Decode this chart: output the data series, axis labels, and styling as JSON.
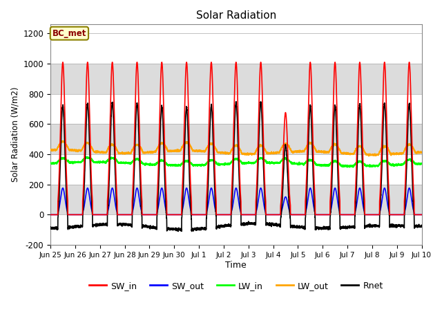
{
  "title": "Solar Radiation",
  "ylabel": "Solar Radiation (W/m2)",
  "xlabel": "Time",
  "ylim": [
    -200,
    1260
  ],
  "yticks": [
    -200,
    0,
    200,
    400,
    600,
    800,
    1000,
    1200
  ],
  "annotation": "BC_met",
  "series": {
    "SW_in": {
      "color": "#ff0000",
      "lw": 1.2
    },
    "SW_out": {
      "color": "#0000ff",
      "lw": 1.2
    },
    "LW_in": {
      "color": "#00ff00",
      "lw": 1.2
    },
    "LW_out": {
      "color": "#ffa500",
      "lw": 1.2
    },
    "Rnet": {
      "color": "#000000",
      "lw": 1.2
    }
  },
  "x_tick_labels": [
    "Jun 25",
    "Jun 26",
    "Jun 27",
    "Jun 28",
    "Jun 29",
    "Jun 30",
    "Jul 1",
    "Jul 2",
    "Jul 3",
    "Jul 4",
    "Jul 5",
    "Jul 6",
    "Jul 7",
    "Jul 8",
    "Jul 9",
    "Jul 10"
  ],
  "n_days": 15,
  "pts_per_day": 288,
  "band_colors": [
    "#ffffff",
    "#dcdcdc"
  ]
}
